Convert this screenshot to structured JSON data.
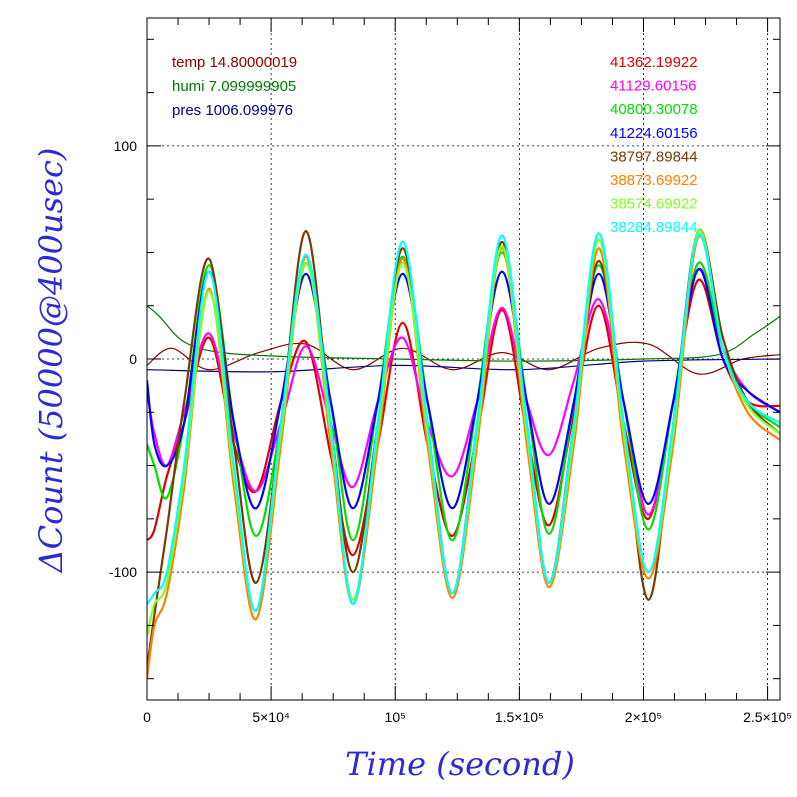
{
  "chart_data": {
    "type": "line",
    "xlabel": "Time (second)",
    "ylabel": "ΔCount (50000@400usec)",
    "xlim": [
      0,
      255000
    ],
    "ylim": [
      -160,
      160
    ],
    "xticks": [
      {
        "value": 0,
        "label": "0"
      },
      {
        "value": 50000,
        "label": "5×10⁴"
      },
      {
        "value": 100000,
        "label": "10⁵"
      },
      {
        "value": 150000,
        "label": "1.5×10⁵"
      },
      {
        "value": 200000,
        "label": "2×10⁵"
      },
      {
        "value": 250000,
        "label": "2.5×10⁵"
      }
    ],
    "yticks": [
      {
        "value": -100,
        "label": "-100"
      },
      {
        "value": 0,
        "label": "0"
      },
      {
        "value": 100,
        "label": "100"
      }
    ],
    "grid": true,
    "legend_left": [
      {
        "text": "temp 14.80000019",
        "color": "#8b0000"
      },
      {
        "text": "humi 7.099999905",
        "color": "#007a00"
      },
      {
        "text": "pres 1006.099976",
        "color": "#000080"
      }
    ],
    "legend_right": [
      {
        "text": "41362.19922",
        "color": "#e00000"
      },
      {
        "text": "41129.60156",
        "color": "#ff00ff"
      },
      {
        "text": "40800.30078",
        "color": "#00e000"
      },
      {
        "text": "41224.60156",
        "color": "#0000ff"
      },
      {
        "text": "38797.89844",
        "color": "#7a3a00"
      },
      {
        "text": "38873.69922",
        "color": "#ff8000"
      },
      {
        "text": "38574.69922",
        "color": "#80ff20"
      },
      {
        "text": "38284.89844",
        "color": "#00ffff"
      }
    ],
    "oscillation": {
      "period": 39300,
      "peak_times": [
        25000,
        64000,
        103000,
        143000,
        182000,
        222000
      ]
    },
    "series": [
      {
        "color": "#8b0000",
        "points": [
          [
            0,
            -3
          ],
          [
            10000,
            5
          ],
          [
            25000,
            -5
          ],
          [
            45000,
            3
          ],
          [
            64000,
            7
          ],
          [
            83000,
            -5
          ],
          [
            103000,
            5
          ],
          [
            123000,
            -5
          ],
          [
            143000,
            3
          ],
          [
            162000,
            -5
          ],
          [
            182000,
            5
          ],
          [
            202000,
            7
          ],
          [
            222000,
            -7
          ],
          [
            240000,
            0
          ],
          [
            255000,
            2
          ]
        ]
      },
      {
        "color": "#007a00",
        "points": [
          [
            0,
            25
          ],
          [
            5000,
            20
          ],
          [
            15000,
            8
          ],
          [
            30000,
            3
          ],
          [
            60000,
            1
          ],
          [
            100000,
            0
          ],
          [
            150000,
            -1
          ],
          [
            200000,
            0
          ],
          [
            230000,
            2
          ],
          [
            245000,
            12
          ],
          [
            255000,
            20
          ]
        ]
      },
      {
        "color": "#000080",
        "points": [
          [
            0,
            -5
          ],
          [
            50000,
            -6
          ],
          [
            100000,
            -3
          ],
          [
            150000,
            -5
          ],
          [
            200000,
            -1
          ],
          [
            255000,
            0
          ]
        ]
      },
      {
        "color": "#e00000",
        "points": [
          [
            0,
            -85
          ],
          [
            3000,
            -80
          ],
          [
            8000,
            -55
          ],
          [
            15000,
            -30
          ],
          [
            25000,
            10
          ],
          [
            35000,
            -40
          ],
          [
            44000,
            -62
          ],
          [
            54000,
            -20
          ],
          [
            64000,
            8
          ],
          [
            74000,
            -45
          ],
          [
            83000,
            -92
          ],
          [
            93000,
            -40
          ],
          [
            103000,
            17
          ],
          [
            113000,
            -40
          ],
          [
            123000,
            -83
          ],
          [
            133000,
            -35
          ],
          [
            143000,
            23
          ],
          [
            153000,
            -35
          ],
          [
            162000,
            -78
          ],
          [
            172000,
            -25
          ],
          [
            182000,
            25
          ],
          [
            192000,
            -30
          ],
          [
            202000,
            -75
          ],
          [
            212000,
            -20
          ],
          [
            222000,
            37
          ],
          [
            232000,
            0
          ],
          [
            242000,
            -20
          ],
          [
            255000,
            -22
          ]
        ]
      },
      {
        "color": "#ff00ff",
        "points": [
          [
            0,
            -15
          ],
          [
            3000,
            -35
          ],
          [
            8000,
            -50
          ],
          [
            15000,
            -25
          ],
          [
            25000,
            12
          ],
          [
            35000,
            -35
          ],
          [
            44000,
            -62
          ],
          [
            54000,
            -30
          ],
          [
            64000,
            6
          ],
          [
            74000,
            -30
          ],
          [
            83000,
            -60
          ],
          [
            93000,
            -20
          ],
          [
            103000,
            10
          ],
          [
            113000,
            -30
          ],
          [
            123000,
            -55
          ],
          [
            133000,
            -20
          ],
          [
            143000,
            24
          ],
          [
            153000,
            -20
          ],
          [
            162000,
            -45
          ],
          [
            172000,
            -10
          ],
          [
            182000,
            28
          ],
          [
            192000,
            -20
          ],
          [
            202000,
            -73
          ],
          [
            212000,
            -20
          ],
          [
            222000,
            42
          ],
          [
            232000,
            5
          ],
          [
            242000,
            -15
          ],
          [
            255000,
            -25
          ]
        ]
      },
      {
        "color": "#00e000",
        "points": [
          [
            0,
            -40
          ],
          [
            3000,
            -50
          ],
          [
            8000,
            -65
          ],
          [
            15000,
            -30
          ],
          [
            25000,
            44
          ],
          [
            35000,
            -30
          ],
          [
            44000,
            -83
          ],
          [
            54000,
            -30
          ],
          [
            64000,
            45
          ],
          [
            74000,
            -20
          ],
          [
            83000,
            -85
          ],
          [
            93000,
            -20
          ],
          [
            103000,
            48
          ],
          [
            113000,
            -20
          ],
          [
            123000,
            -85
          ],
          [
            133000,
            -20
          ],
          [
            143000,
            50
          ],
          [
            153000,
            -20
          ],
          [
            162000,
            -82
          ],
          [
            172000,
            -20
          ],
          [
            182000,
            44
          ],
          [
            192000,
            -20
          ],
          [
            202000,
            -80
          ],
          [
            212000,
            -20
          ],
          [
            222000,
            45
          ],
          [
            232000,
            5
          ],
          [
            242000,
            -20
          ],
          [
            255000,
            -32
          ]
        ]
      },
      {
        "color": "#0000ff",
        "points": [
          [
            0,
            -10
          ],
          [
            3000,
            -40
          ],
          [
            8000,
            -50
          ],
          [
            15000,
            -30
          ],
          [
            25000,
            41
          ],
          [
            35000,
            -30
          ],
          [
            44000,
            -70
          ],
          [
            54000,
            -20
          ],
          [
            64000,
            40
          ],
          [
            74000,
            -20
          ],
          [
            83000,
            -70
          ],
          [
            93000,
            -20
          ],
          [
            103000,
            40
          ],
          [
            113000,
            -20
          ],
          [
            123000,
            -70
          ],
          [
            133000,
            -20
          ],
          [
            143000,
            41
          ],
          [
            153000,
            -20
          ],
          [
            162000,
            -68
          ],
          [
            172000,
            -20
          ],
          [
            182000,
            40
          ],
          [
            192000,
            -20
          ],
          [
            202000,
            -68
          ],
          [
            212000,
            -20
          ],
          [
            222000,
            42
          ],
          [
            232000,
            0
          ],
          [
            242000,
            -15
          ],
          [
            255000,
            -25
          ]
        ]
      },
      {
        "color": "#7a3a00",
        "points": [
          [
            0,
            -145
          ],
          [
            3000,
            -120
          ],
          [
            8000,
            -80
          ],
          [
            15000,
            -20
          ],
          [
            25000,
            47
          ],
          [
            35000,
            -40
          ],
          [
            44000,
            -105
          ],
          [
            54000,
            -30
          ],
          [
            64000,
            60
          ],
          [
            74000,
            -30
          ],
          [
            83000,
            -100
          ],
          [
            93000,
            -30
          ],
          [
            103000,
            52
          ],
          [
            113000,
            -30
          ],
          [
            123000,
            -110
          ],
          [
            133000,
            -30
          ],
          [
            143000,
            55
          ],
          [
            153000,
            -30
          ],
          [
            162000,
            -105
          ],
          [
            172000,
            -30
          ],
          [
            182000,
            46
          ],
          [
            192000,
            -30
          ],
          [
            202000,
            -113
          ],
          [
            212000,
            -30
          ],
          [
            222000,
            60
          ],
          [
            232000,
            10
          ],
          [
            242000,
            -20
          ],
          [
            255000,
            -35
          ]
        ]
      },
      {
        "color": "#ff8000",
        "points": [
          [
            0,
            -150
          ],
          [
            3000,
            -125
          ],
          [
            8000,
            -110
          ],
          [
            15000,
            -60
          ],
          [
            25000,
            33
          ],
          [
            35000,
            -60
          ],
          [
            44000,
            -122
          ],
          [
            54000,
            -40
          ],
          [
            64000,
            48
          ],
          [
            74000,
            -40
          ],
          [
            83000,
            -115
          ],
          [
            93000,
            -40
          ],
          [
            103000,
            47
          ],
          [
            113000,
            -40
          ],
          [
            123000,
            -112
          ],
          [
            133000,
            -40
          ],
          [
            143000,
            52
          ],
          [
            153000,
            -40
          ],
          [
            162000,
            -107
          ],
          [
            172000,
            -40
          ],
          [
            182000,
            52
          ],
          [
            192000,
            -40
          ],
          [
            202000,
            -103
          ],
          [
            212000,
            -40
          ],
          [
            222000,
            57
          ],
          [
            232000,
            5
          ],
          [
            242000,
            -25
          ],
          [
            255000,
            -38
          ]
        ]
      },
      {
        "color": "#80ff20",
        "points": [
          [
            0,
            -130
          ],
          [
            3000,
            -115
          ],
          [
            8000,
            -105
          ],
          [
            15000,
            -55
          ],
          [
            25000,
            32
          ],
          [
            35000,
            -55
          ],
          [
            44000,
            -118
          ],
          [
            54000,
            -35
          ],
          [
            64000,
            45
          ],
          [
            74000,
            -35
          ],
          [
            83000,
            -113
          ],
          [
            93000,
            -35
          ],
          [
            103000,
            45
          ],
          [
            113000,
            -35
          ],
          [
            123000,
            -110
          ],
          [
            133000,
            -35
          ],
          [
            143000,
            53
          ],
          [
            153000,
            -35
          ],
          [
            162000,
            -105
          ],
          [
            172000,
            -35
          ],
          [
            182000,
            56
          ],
          [
            192000,
            -35
          ],
          [
            202000,
            -100
          ],
          [
            212000,
            -35
          ],
          [
            222000,
            60
          ],
          [
            232000,
            5
          ],
          [
            242000,
            -22
          ],
          [
            255000,
            -35
          ]
        ]
      },
      {
        "color": "#00ffff",
        "points": [
          [
            0,
            -115
          ],
          [
            3000,
            -110
          ],
          [
            8000,
            -100
          ],
          [
            15000,
            -50
          ],
          [
            25000,
            41
          ],
          [
            35000,
            -50
          ],
          [
            44000,
            -118
          ],
          [
            54000,
            -30
          ],
          [
            64000,
            49
          ],
          [
            74000,
            -30
          ],
          [
            83000,
            -115
          ],
          [
            93000,
            -30
          ],
          [
            103000,
            55
          ],
          [
            113000,
            -30
          ],
          [
            123000,
            -110
          ],
          [
            133000,
            -30
          ],
          [
            143000,
            58
          ],
          [
            153000,
            -30
          ],
          [
            162000,
            -105
          ],
          [
            172000,
            -30
          ],
          [
            182000,
            59
          ],
          [
            192000,
            -30
          ],
          [
            202000,
            -100
          ],
          [
            212000,
            -30
          ],
          [
            222000,
            58
          ],
          [
            232000,
            5
          ],
          [
            242000,
            -20
          ],
          [
            255000,
            -30
          ]
        ]
      }
    ]
  }
}
